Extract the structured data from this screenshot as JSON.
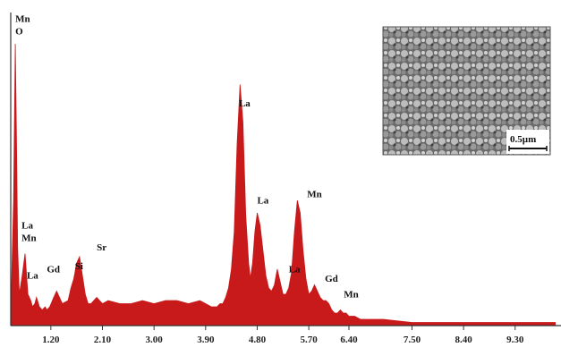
{
  "chart_data": {
    "type": "area",
    "title": "",
    "xlabel": "",
    "ylabel": "",
    "xlim": [
      0.5,
      10.1
    ],
    "ylim": [
      0,
      100
    ],
    "grid": false,
    "series_color": "#c8191b",
    "x_ticks": [
      "1.20",
      "2.10",
      "3.00",
      "3.90",
      "4.80",
      "5.70",
      "6.40",
      "7.50",
      "8.40",
      "9.30"
    ],
    "series": [
      {
        "x": [
          0.5,
          0.55,
          0.58,
          0.6,
          0.62,
          0.65,
          0.7,
          0.75,
          0.8,
          0.85,
          0.88,
          0.92,
          0.95,
          1.0,
          1.05,
          1.1,
          1.13,
          1.18,
          1.25,
          1.3,
          1.4,
          1.5,
          1.55,
          1.6,
          1.65,
          1.7,
          1.75,
          1.8,
          1.85,
          1.9,
          1.95,
          2.0,
          2.1,
          2.2,
          2.4,
          2.6,
          2.8,
          3.0,
          3.2,
          3.4,
          3.6,
          3.8,
          4.0,
          4.1,
          4.15,
          4.2,
          4.25,
          4.3,
          4.35,
          4.4,
          4.45,
          4.5,
          4.55,
          4.6,
          4.65,
          4.68,
          4.72,
          4.76,
          4.8,
          4.85,
          4.9,
          4.95,
          5.0,
          5.05,
          5.1,
          5.15,
          5.2,
          5.25,
          5.3,
          5.35,
          5.4,
          5.45,
          5.5,
          5.55,
          5.6,
          5.65,
          5.7,
          5.75,
          5.8,
          5.85,
          5.9,
          5.95,
          6.0,
          6.05,
          6.1,
          6.15,
          6.2,
          6.25,
          6.3,
          6.35,
          6.4,
          6.45,
          6.5,
          6.6,
          6.8,
          7.0,
          7.5,
          8.0,
          8.5,
          9.0,
          9.5,
          10.0
        ],
        "y": [
          3,
          40,
          90,
          60,
          25,
          10,
          16,
          23,
          10,
          8,
          6,
          7,
          9,
          6,
          5,
          6,
          5,
          6,
          9,
          11,
          7,
          8,
          12,
          15,
          20,
          22,
          16,
          10,
          7,
          7,
          8,
          9,
          7,
          8,
          7,
          7,
          8,
          7,
          8,
          8,
          7,
          8,
          6,
          6,
          7,
          7,
          9,
          12,
          18,
          30,
          58,
          77,
          65,
          35,
          20,
          15,
          20,
          30,
          36,
          32,
          24,
          16,
          12,
          11,
          13,
          18,
          14,
          10,
          10,
          12,
          17,
          30,
          40,
          36,
          24,
          15,
          10,
          11,
          13,
          11,
          9,
          8,
          8,
          7,
          5,
          4,
          4,
          5,
          4,
          4,
          3,
          3,
          3,
          2,
          2,
          2,
          1,
          1,
          1,
          1,
          1,
          1
        ]
      }
    ],
    "peaks": [
      {
        "label": "Mn",
        "x": 0.58,
        "y": 97
      },
      {
        "label": "O",
        "x": 0.58,
        "y": 93
      },
      {
        "label": "La",
        "x": 0.69,
        "y": 31
      },
      {
        "label": "Mn",
        "x": 0.69,
        "y": 27
      },
      {
        "label": "La",
        "x": 0.78,
        "y": 15
      },
      {
        "label": "Gd",
        "x": 1.13,
        "y": 17
      },
      {
        "label": "Si",
        "x": 1.62,
        "y": 18
      },
      {
        "label": "Sr",
        "x": 2.0,
        "y": 24
      },
      {
        "label": "La",
        "x": 4.48,
        "y": 70
      },
      {
        "label": "La",
        "x": 4.8,
        "y": 39
      },
      {
        "label": "La",
        "x": 5.35,
        "y": 17
      },
      {
        "label": "Mn",
        "x": 5.67,
        "y": 41
      },
      {
        "label": "Gd",
        "x": 5.98,
        "y": 14
      },
      {
        "label": "Mn",
        "x": 6.31,
        "y": 9
      }
    ]
  },
  "inset": {
    "scale_label": "0.5µm"
  }
}
